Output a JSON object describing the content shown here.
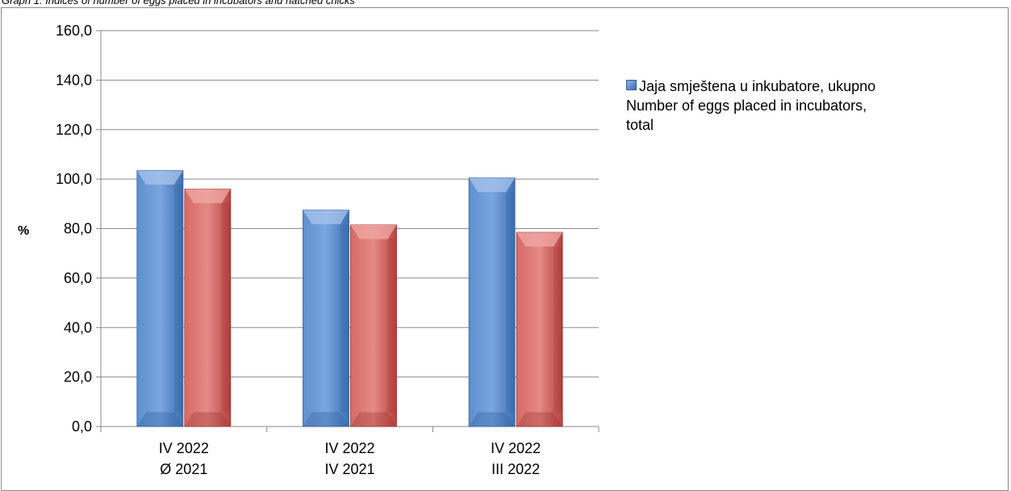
{
  "caption": "Graph 1. Indices of number of eggs placed in incubators and hatched chicks",
  "chart_data": {
    "type": "bar",
    "title": "",
    "xlabel": "",
    "ylabel": "%",
    "ylim": [
      0,
      160
    ],
    "yticks": [
      "0,0",
      "20,0",
      "40,0",
      "60,0",
      "80,0",
      "100,0",
      "120,0",
      "140,0",
      "160,0"
    ],
    "categories": [
      [
        "IV 2022",
        "Ø 2021"
      ],
      [
        "IV 2022",
        "IV 2021"
      ],
      [
        "IV 2022",
        "III 2022"
      ]
    ],
    "series": [
      {
        "name": "Jaja smještena u inkubatore, ukupno Number  of eggs placed in incubators, total",
        "color": "#4f81bd",
        "values": [
          103.5,
          87.5,
          100.5
        ]
      },
      {
        "color": "#c0504d",
        "values": [
          96.0,
          81.5,
          78.5
        ]
      }
    ],
    "grid": true,
    "legend_position": "right"
  },
  "legend": {
    "line1": "Jaja smještena u inkubatore, ukupno",
    "line2": "Number  of eggs placed in incubators,",
    "line3": "total"
  }
}
